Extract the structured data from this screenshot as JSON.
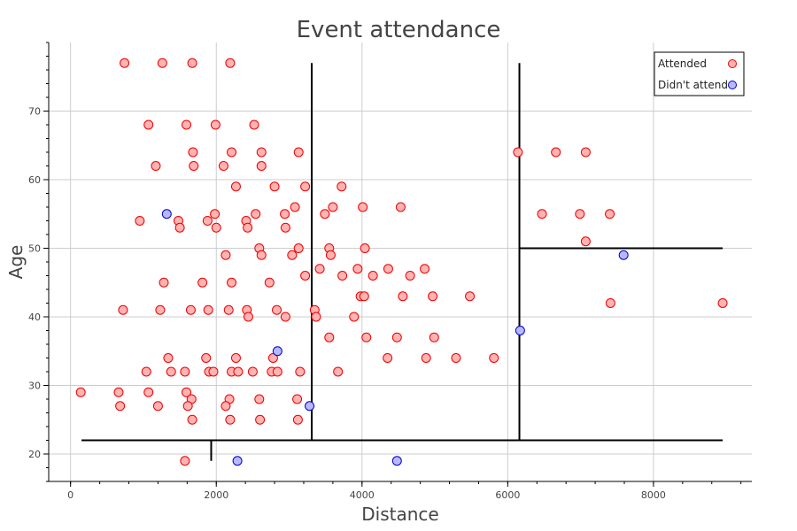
{
  "chart_data": {
    "type": "scatter",
    "title": "Event attendance",
    "xlabel": "Distance",
    "ylabel": "Age",
    "xlim": [
      -300,
      9350
    ],
    "ylim": [
      16,
      80
    ],
    "xticks": [
      0,
      2000,
      4000,
      6000,
      8000
    ],
    "yticks": [
      20,
      30,
      40,
      50,
      60,
      70
    ],
    "xminor_step": 400,
    "yminor_step": 2,
    "grid": true,
    "legend_position": "top-right",
    "series": [
      {
        "name": "Attended",
        "fill": "#ffb3b3",
        "stroke": "#ee0000",
        "points": [
          [
            740,
            77
          ],
          [
            1260,
            77
          ],
          [
            1670,
            77
          ],
          [
            2190,
            77
          ],
          [
            1070,
            68
          ],
          [
            1590,
            68
          ],
          [
            1990,
            68
          ],
          [
            2520,
            68
          ],
          [
            1680,
            64
          ],
          [
            2210,
            64
          ],
          [
            2620,
            64
          ],
          [
            3130,
            64
          ],
          [
            1170,
            62
          ],
          [
            1690,
            62
          ],
          [
            2100,
            62
          ],
          [
            2620,
            62
          ],
          [
            2270,
            59
          ],
          [
            2800,
            59
          ],
          [
            3220,
            59
          ],
          [
            3720,
            59
          ],
          [
            950,
            54
          ],
          [
            1480,
            54
          ],
          [
            1880,
            54
          ],
          [
            2410,
            54
          ],
          [
            1500,
            53
          ],
          [
            2000,
            53
          ],
          [
            2430,
            53
          ],
          [
            2950,
            53
          ],
          [
            1980,
            55
          ],
          [
            2540,
            55
          ],
          [
            2940,
            55
          ],
          [
            3490,
            55
          ],
          [
            3080,
            56
          ],
          [
            3600,
            56
          ],
          [
            4010,
            56
          ],
          [
            4530,
            56
          ],
          [
            2590,
            50
          ],
          [
            3130,
            50
          ],
          [
            3550,
            50
          ],
          [
            4040,
            50
          ],
          [
            2130,
            49
          ],
          [
            2620,
            49
          ],
          [
            3040,
            49
          ],
          [
            3570,
            49
          ],
          [
            3420,
            47
          ],
          [
            3940,
            47
          ],
          [
            4360,
            47
          ],
          [
            4860,
            47
          ],
          [
            3220,
            46
          ],
          [
            3730,
            46
          ],
          [
            4150,
            46
          ],
          [
            4660,
            46
          ],
          [
            1280,
            45
          ],
          [
            1810,
            45
          ],
          [
            2210,
            45
          ],
          [
            2730,
            45
          ],
          [
            3980,
            43
          ],
          [
            4030,
            43
          ],
          [
            4560,
            43
          ],
          [
            4970,
            43
          ],
          [
            5480,
            43
          ],
          [
            720,
            41
          ],
          [
            1230,
            41
          ],
          [
            1650,
            41
          ],
          [
            1890,
            41
          ],
          [
            2170,
            41
          ],
          [
            2420,
            41
          ],
          [
            2830,
            41
          ],
          [
            3350,
            41
          ],
          [
            2440,
            40
          ],
          [
            2950,
            40
          ],
          [
            3370,
            40
          ],
          [
            3890,
            40
          ],
          [
            3550,
            37
          ],
          [
            4060,
            37
          ],
          [
            4480,
            37
          ],
          [
            4990,
            37
          ],
          [
            1340,
            34
          ],
          [
            1860,
            34
          ],
          [
            2270,
            34
          ],
          [
            2780,
            34
          ],
          [
            4350,
            34
          ],
          [
            4880,
            34
          ],
          [
            5290,
            34
          ],
          [
            5810,
            34
          ],
          [
            1040,
            32
          ],
          [
            1380,
            32
          ],
          [
            1570,
            32
          ],
          [
            1900,
            32
          ],
          [
            1960,
            32
          ],
          [
            2210,
            32
          ],
          [
            2300,
            32
          ],
          [
            2500,
            32
          ],
          [
            2760,
            32
          ],
          [
            2840,
            32
          ],
          [
            3150,
            32
          ],
          [
            3670,
            32
          ],
          [
            140,
            29
          ],
          [
            660,
            29
          ],
          [
            1070,
            29
          ],
          [
            1590,
            29
          ],
          [
            1660,
            28
          ],
          [
            2180,
            28
          ],
          [
            2590,
            28
          ],
          [
            3110,
            28
          ],
          [
            680,
            27
          ],
          [
            1200,
            27
          ],
          [
            1610,
            27
          ],
          [
            2130,
            27
          ],
          [
            1670,
            25
          ],
          [
            2190,
            25
          ],
          [
            2600,
            25
          ],
          [
            3120,
            25
          ],
          [
            1570,
            19
          ],
          [
            6140,
            64
          ],
          [
            6660,
            64
          ],
          [
            7070,
            64
          ],
          [
            6470,
            55
          ],
          [
            6990,
            55
          ],
          [
            7400,
            55
          ],
          [
            7070,
            51
          ],
          [
            7410,
            42
          ],
          [
            8950,
            42
          ]
        ]
      },
      {
        "name": "Didn't attend",
        "fill": "#b8b8ff",
        "stroke": "#0000cc",
        "points": [
          [
            1320,
            55
          ],
          [
            2840,
            35
          ],
          [
            3280,
            27
          ],
          [
            6170,
            38
          ],
          [
            7590,
            49
          ],
          [
            2290,
            19
          ],
          [
            4480,
            19
          ]
        ]
      }
    ],
    "partitions": [
      {
        "x": [
          150,
          8950
        ],
        "y": [
          22,
          22
        ]
      },
      {
        "x": [
          1930,
          1930
        ],
        "y": [
          19,
          22
        ]
      },
      {
        "x": [
          3310,
          3310
        ],
        "y": [
          22,
          77
        ]
      },
      {
        "x": [
          6160,
          6160
        ],
        "y": [
          22,
          77
        ]
      },
      {
        "x": [
          6160,
          8950
        ],
        "y": [
          50,
          50
        ]
      }
    ]
  }
}
